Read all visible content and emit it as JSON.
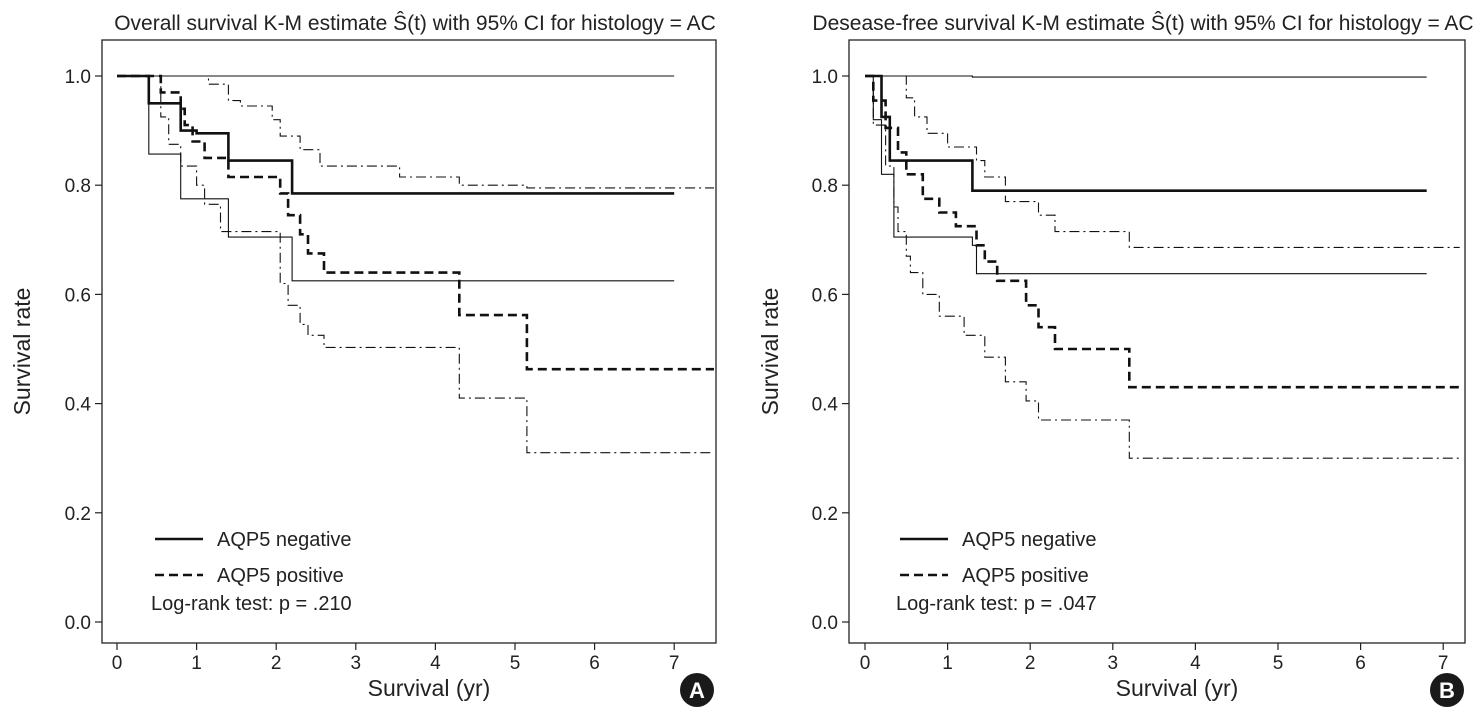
{
  "chart_data": [
    {
      "type": "line",
      "subtype": "kaplan-meier step",
      "title": "Overall survival K-M estimate Ŝ(t) with 95% CI for histology = AC",
      "xlabel": "Survival (yr)",
      "ylabel": "Survival rate",
      "xlim": [
        0,
        7.5
      ],
      "ylim": [
        0,
        1
      ],
      "xticks": [
        0,
        1,
        2,
        3,
        4,
        5,
        6,
        7
      ],
      "yticks": [
        "0.0",
        "0.2",
        "0.4",
        "0.6",
        "0.8",
        "1.0"
      ],
      "grid": false,
      "legend_position": "bottom-left",
      "legend": [
        "AQP5 negative",
        "AQP5 positive"
      ],
      "annotation": "Log-rank test: p = .210",
      "panel_label": "A",
      "series": [
        {
          "name": "AQP5 negative",
          "style": "solid-thick",
          "points": [
            [
              0,
              1.0
            ],
            [
              0.4,
              1.0
            ],
            [
              0.4,
              0.95
            ],
            [
              0.8,
              0.95
            ],
            [
              0.8,
              0.9
            ],
            [
              1.0,
              0.9
            ],
            [
              1.0,
              0.895
            ],
            [
              1.4,
              0.895
            ],
            [
              1.4,
              0.845
            ],
            [
              2.2,
              0.845
            ],
            [
              2.2,
              0.785
            ],
            [
              7.0,
              0.785
            ]
          ]
        },
        {
          "role": "CI",
          "style": "solid-thin",
          "points": [
            [
              0,
              1.0
            ],
            [
              7.0,
              1.0
            ]
          ]
        },
        {
          "role": "CI",
          "style": "solid-thin",
          "points": [
            [
              0,
              1.0
            ],
            [
              0.4,
              1.0
            ],
            [
              0.4,
              0.857
            ],
            [
              0.8,
              0.857
            ],
            [
              0.8,
              0.775
            ],
            [
              1.4,
              0.775
            ],
            [
              1.4,
              0.705
            ],
            [
              2.2,
              0.705
            ],
            [
              2.2,
              0.625
            ],
            [
              7.0,
              0.625
            ]
          ]
        },
        {
          "name": "AQP5 positive",
          "style": "dashed-thick",
          "points": [
            [
              0,
              1.0
            ],
            [
              0.55,
              1.0
            ],
            [
              0.55,
              0.97
            ],
            [
              0.8,
              0.97
            ],
            [
              0.8,
              0.94
            ],
            [
              0.85,
              0.94
            ],
            [
              0.85,
              0.91
            ],
            [
              0.95,
              0.91
            ],
            [
              0.95,
              0.88
            ],
            [
              1.1,
              0.88
            ],
            [
              1.1,
              0.85
            ],
            [
              1.4,
              0.85
            ],
            [
              1.4,
              0.815
            ],
            [
              2.05,
              0.815
            ],
            [
              2.05,
              0.785
            ],
            [
              2.15,
              0.785
            ],
            [
              2.15,
              0.745
            ],
            [
              2.3,
              0.745
            ],
            [
              2.3,
              0.71
            ],
            [
              2.4,
              0.71
            ],
            [
              2.4,
              0.675
            ],
            [
              2.6,
              0.675
            ],
            [
              2.6,
              0.64
            ],
            [
              4.3,
              0.64
            ],
            [
              4.3,
              0.562
            ],
            [
              5.15,
              0.562
            ],
            [
              5.15,
              0.463
            ],
            [
              7.5,
              0.463
            ]
          ]
        },
        {
          "role": "CI",
          "style": "dashdot-thin",
          "points": [
            [
              0,
              1.0
            ],
            [
              1.15,
              1.0
            ],
            [
              1.15,
              0.985
            ],
            [
              1.4,
              0.985
            ],
            [
              1.4,
              0.955
            ],
            [
              1.55,
              0.955
            ],
            [
              1.55,
              0.945
            ],
            [
              1.95,
              0.945
            ],
            [
              1.95,
              0.92
            ],
            [
              2.05,
              0.92
            ],
            [
              2.05,
              0.89
            ],
            [
              2.3,
              0.89
            ],
            [
              2.3,
              0.865
            ],
            [
              2.55,
              0.865
            ],
            [
              2.55,
              0.835
            ],
            [
              3.55,
              0.835
            ],
            [
              3.55,
              0.815
            ],
            [
              4.3,
              0.815
            ],
            [
              4.3,
              0.8
            ],
            [
              5.15,
              0.8
            ],
            [
              5.15,
              0.795
            ],
            [
              7.5,
              0.795
            ]
          ]
        },
        {
          "role": "CI",
          "style": "dashdot-thin",
          "points": [
            [
              0,
              1.0
            ],
            [
              0.55,
              1.0
            ],
            [
              0.55,
              0.925
            ],
            [
              0.65,
              0.925
            ],
            [
              0.65,
              0.875
            ],
            [
              0.8,
              0.875
            ],
            [
              0.8,
              0.835
            ],
            [
              1.0,
              0.835
            ],
            [
              1.0,
              0.8
            ],
            [
              1.1,
              0.8
            ],
            [
              1.1,
              0.765
            ],
            [
              1.3,
              0.765
            ],
            [
              1.3,
              0.715
            ],
            [
              2.05,
              0.715
            ],
            [
              2.05,
              0.62
            ],
            [
              2.15,
              0.62
            ],
            [
              2.15,
              0.58
            ],
            [
              2.3,
              0.58
            ],
            [
              2.3,
              0.545
            ],
            [
              2.4,
              0.545
            ],
            [
              2.4,
              0.525
            ],
            [
              2.6,
              0.525
            ],
            [
              2.6,
              0.503
            ],
            [
              4.3,
              0.503
            ],
            [
              4.3,
              0.41
            ],
            [
              5.15,
              0.41
            ],
            [
              5.15,
              0.31
            ],
            [
              7.5,
              0.31
            ]
          ]
        }
      ]
    },
    {
      "type": "line",
      "subtype": "kaplan-meier step",
      "title": "Desease-free survival K-M estimate Ŝ(t) with 95% CI for histology = AC",
      "xlabel": "Survival (yr)",
      "ylabel": "Survival rate",
      "xlim": [
        0,
        7.2
      ],
      "ylim": [
        0,
        1
      ],
      "xticks": [
        0,
        1,
        2,
        3,
        4,
        5,
        6,
        7
      ],
      "yticks": [
        "0.0",
        "0.2",
        "0.4",
        "0.6",
        "0.8",
        "1.0"
      ],
      "grid": false,
      "legend_position": "bottom-left",
      "legend": [
        "AQP5 negative",
        "AQP5 positive"
      ],
      "annotation": "Log-rank test: p = .047",
      "panel_label": "B",
      "series": [
        {
          "name": "AQP5 negative",
          "style": "solid-thick",
          "points": [
            [
              0,
              1.0
            ],
            [
              0.2,
              1.0
            ],
            [
              0.2,
              0.925
            ],
            [
              0.3,
              0.925
            ],
            [
              0.3,
              0.845
            ],
            [
              1.3,
              0.845
            ],
            [
              1.3,
              0.79
            ],
            [
              6.8,
              0.79
            ]
          ]
        },
        {
          "role": "CI",
          "style": "solid-thin",
          "points": [
            [
              0,
              1.0
            ],
            [
              1.3,
              1.0
            ],
            [
              1.3,
              0.998
            ],
            [
              6.8,
              0.998
            ]
          ]
        },
        {
          "role": "CI",
          "style": "solid-thin",
          "points": [
            [
              0,
              1.0
            ],
            [
              0.1,
              1.0
            ],
            [
              0.1,
              0.92
            ],
            [
              0.2,
              0.92
            ],
            [
              0.2,
              0.82
            ],
            [
              0.35,
              0.82
            ],
            [
              0.35,
              0.705
            ],
            [
              1.3,
              0.705
            ],
            [
              1.3,
              0.69
            ],
            [
              1.35,
              0.69
            ],
            [
              1.35,
              0.638
            ],
            [
              6.8,
              0.638
            ]
          ]
        },
        {
          "name": "AQP5 positive",
          "style": "dashed-thick",
          "points": [
            [
              0,
              1.0
            ],
            [
              0.1,
              1.0
            ],
            [
              0.1,
              0.955
            ],
            [
              0.25,
              0.955
            ],
            [
              0.25,
              0.905
            ],
            [
              0.4,
              0.905
            ],
            [
              0.4,
              0.86
            ],
            [
              0.5,
              0.86
            ],
            [
              0.5,
              0.82
            ],
            [
              0.7,
              0.82
            ],
            [
              0.7,
              0.775
            ],
            [
              0.9,
              0.775
            ],
            [
              0.9,
              0.75
            ],
            [
              1.1,
              0.75
            ],
            [
              1.1,
              0.725
            ],
            [
              1.35,
              0.725
            ],
            [
              1.35,
              0.69
            ],
            [
              1.45,
              0.69
            ],
            [
              1.45,
              0.66
            ],
            [
              1.6,
              0.66
            ],
            [
              1.6,
              0.625
            ],
            [
              1.95,
              0.625
            ],
            [
              1.95,
              0.58
            ],
            [
              2.1,
              0.58
            ],
            [
              2.1,
              0.54
            ],
            [
              2.3,
              0.54
            ],
            [
              2.3,
              0.5
            ],
            [
              3.2,
              0.5
            ],
            [
              3.2,
              0.43
            ],
            [
              7.2,
              0.43
            ]
          ]
        },
        {
          "role": "CI",
          "style": "dashdot-thin",
          "points": [
            [
              0,
              1.0
            ],
            [
              0.5,
              1.0
            ],
            [
              0.5,
              0.96
            ],
            [
              0.6,
              0.96
            ],
            [
              0.6,
              0.925
            ],
            [
              0.75,
              0.925
            ],
            [
              0.75,
              0.895
            ],
            [
              1.0,
              0.895
            ],
            [
              1.0,
              0.87
            ],
            [
              1.35,
              0.87
            ],
            [
              1.35,
              0.845
            ],
            [
              1.45,
              0.845
            ],
            [
              1.45,
              0.815
            ],
            [
              1.7,
              0.815
            ],
            [
              1.7,
              0.77
            ],
            [
              2.1,
              0.77
            ],
            [
              2.1,
              0.745
            ],
            [
              2.3,
              0.745
            ],
            [
              2.3,
              0.715
            ],
            [
              3.2,
              0.715
            ],
            [
              3.2,
              0.686
            ],
            [
              7.2,
              0.686
            ]
          ]
        },
        {
          "role": "CI",
          "style": "dashdot-thin",
          "points": [
            [
              0,
              1.0
            ],
            [
              0.1,
              1.0
            ],
            [
              0.1,
              0.91
            ],
            [
              0.25,
              0.91
            ],
            [
              0.25,
              0.835
            ],
            [
              0.35,
              0.835
            ],
            [
              0.35,
              0.76
            ],
            [
              0.4,
              0.76
            ],
            [
              0.4,
              0.715
            ],
            [
              0.5,
              0.715
            ],
            [
              0.5,
              0.67
            ],
            [
              0.55,
              0.67
            ],
            [
              0.55,
              0.64
            ],
            [
              0.7,
              0.64
            ],
            [
              0.7,
              0.6
            ],
            [
              0.9,
              0.6
            ],
            [
              0.9,
              0.56
            ],
            [
              1.2,
              0.56
            ],
            [
              1.2,
              0.525
            ],
            [
              1.45,
              0.525
            ],
            [
              1.45,
              0.485
            ],
            [
              1.7,
              0.485
            ],
            [
              1.7,
              0.44
            ],
            [
              1.95,
              0.44
            ],
            [
              1.95,
              0.405
            ],
            [
              2.1,
              0.405
            ],
            [
              2.1,
              0.37
            ],
            [
              3.2,
              0.37
            ],
            [
              3.2,
              0.3
            ],
            [
              7.2,
              0.3
            ]
          ]
        }
      ]
    }
  ]
}
